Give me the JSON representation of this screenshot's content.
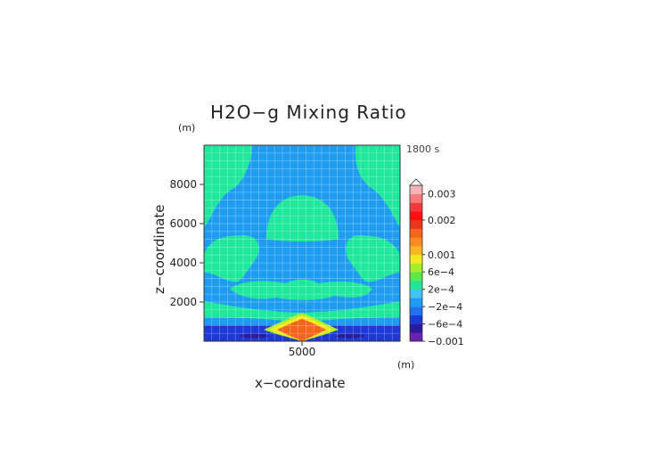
{
  "chart_data": {
    "type": "heatmap",
    "title": "H2O−g Mixing Ratio",
    "xlabel": "x−coordinate",
    "ylabel": "z−coordinate",
    "x_unit": "(m)",
    "y_unit": "(m)",
    "time_label": "1800 s",
    "xlim": [
      0,
      10000
    ],
    "ylim": [
      0,
      10000
    ],
    "x_ticks": [
      {
        "value": 5000,
        "label": "5000"
      }
    ],
    "y_ticks": [
      {
        "value": 2000,
        "label": "2000"
      },
      {
        "value": 4000,
        "label": "4000"
      },
      {
        "value": 6000,
        "label": "6000"
      },
      {
        "value": 8000,
        "label": "8000"
      }
    ],
    "grid": true,
    "colorbar": {
      "levels": [
        -0.001,
        -0.0008,
        -0.0006,
        -0.0004,
        -0.0002,
        0,
        0.0002,
        0.0004,
        0.0006,
        0.0008,
        0.001,
        0.0013,
        0.0016,
        0.0019,
        0.002,
        0.0022,
        0.0025,
        0.003
      ],
      "colors": [
        "#6a1fb5",
        "#2a1a9c",
        "#1c38d6",
        "#1f72f0",
        "#1d9cf2",
        "#45c2f4",
        "#1fe79c",
        "#5ee84a",
        "#a9ec2a",
        "#f4e81e",
        "#fbb423",
        "#f98a24",
        "#f4641c",
        "#e8361a",
        "#ff1010",
        "#f2393c",
        "#f57a7a",
        "#f5b3b3"
      ],
      "tick_labels": [
        {
          "value": -0.001,
          "label": "−0.001"
        },
        {
          "value": -0.0006,
          "label": "−6e−4"
        },
        {
          "value": -0.0002,
          "label": "−2e−4"
        },
        {
          "value": 0.0002,
          "label": "2e−4"
        },
        {
          "value": 0.0006,
          "label": "6e−4"
        },
        {
          "value": 0.001,
          "label": "0.001"
        },
        {
          "value": 0.002,
          "label": "0.002"
        },
        {
          "value": 0.003,
          "label": "0.003"
        }
      ]
    },
    "field_colors": {
      "background": "#1d9cf2",
      "moist": "#1fe79c",
      "dry_deep": "#1c38d6",
      "dry_deeper": "#2a1a9c",
      "plume_inner": "#f4641c",
      "plume_ring_yellow": "#f4e81e",
      "plume_ring_green": "#a9ec2a"
    }
  }
}
